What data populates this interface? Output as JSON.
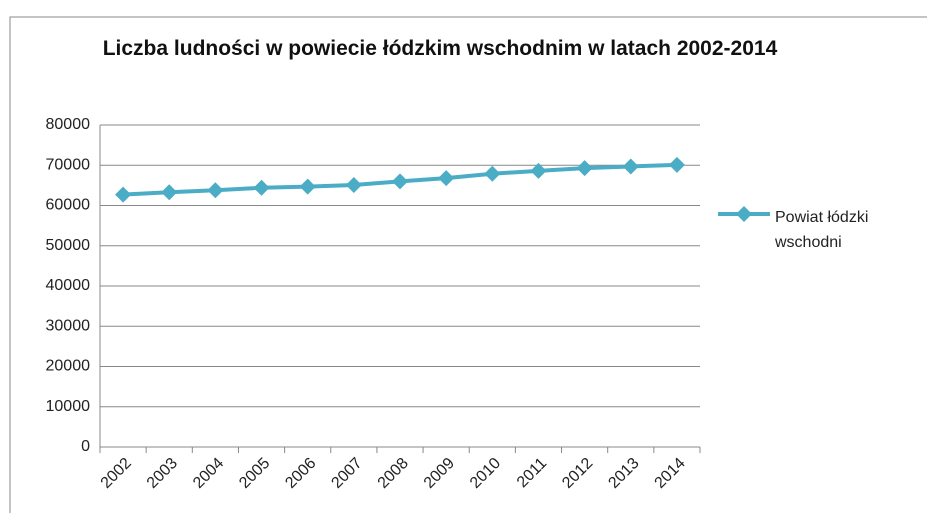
{
  "chart_data": {
    "type": "line",
    "title": "Liczba ludności w powiecie łódzkim wschodnim w latach 2002-2014",
    "categories": [
      "2002",
      "2003",
      "2004",
      "2005",
      "2006",
      "2007",
      "2008",
      "2009",
      "2010",
      "2011",
      "2012",
      "2013",
      "2014"
    ],
    "series": [
      {
        "name": "Powiat łódzki wschodni",
        "color": "#4bacc6",
        "values": [
          62700,
          63300,
          63800,
          64400,
          64700,
          65100,
          66000,
          66800,
          67900,
          68600,
          69300,
          69700,
          70100
        ]
      }
    ],
    "ylim": [
      0,
      80000
    ],
    "yticks": [
      0,
      10000,
      20000,
      30000,
      40000,
      50000,
      60000,
      70000,
      80000
    ],
    "grid": true,
    "legend": "right"
  }
}
